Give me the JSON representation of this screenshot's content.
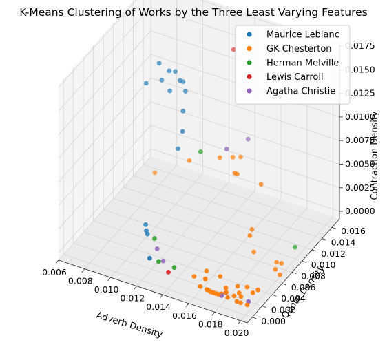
{
  "chart_data": {
    "type": "scatter",
    "title": "K-Means Clustering of Works by the Three Least Varying Features",
    "xlabel": "Adverb Density",
    "ylabel": "Quote Density",
    "zlabel": "Contraction Density",
    "xlim": [
      0.006,
      0.0205
    ],
    "ylim": [
      -0.001,
      0.0175
    ],
    "zlim": [
      -0.0008,
      0.0178
    ],
    "x_ticks": [
      "0.006",
      "0.008",
      "0.010",
      "0.012",
      "0.014",
      "0.016",
      "0.018",
      "0.020"
    ],
    "y_ticks": [
      "0.000",
      "0.002",
      "0.004",
      "0.006",
      "0.008",
      "0.010",
      "0.012",
      "0.014",
      "0.016"
    ],
    "z_ticks": [
      "0.0000",
      "0.0025",
      "0.0050",
      "0.0075",
      "0.0100",
      "0.0125",
      "0.0150",
      "0.0175"
    ],
    "legend_position": "top-right",
    "grid": true,
    "series": [
      {
        "name": "Maurice Leblanc",
        "color": "#1f77b4",
        "points": [
          [
            0.0081,
            0.0111,
            0.0117
          ],
          [
            0.0089,
            0.0116,
            0.0139
          ],
          [
            0.0091,
            0.0116,
            0.0122
          ],
          [
            0.0096,
            0.0118,
            0.0133
          ],
          [
            0.0098,
            0.0114,
            0.0115
          ],
          [
            0.0098,
            0.0125,
            0.0129
          ],
          [
            0.0102,
            0.0124,
            0.0122
          ],
          [
            0.0104,
            0.0125,
            0.0121
          ],
          [
            0.0107,
            0.0122,
            0.0114
          ],
          [
            0.0107,
            0.0117,
            0.0096
          ],
          [
            0.0112,
            0.0103,
            0.0085
          ],
          [
            0.0107,
            0.0107,
            0.0062
          ],
          [
            0.0099,
            0.0063,
            0.0004
          ],
          [
            0.0101,
            0.0059,
            0.0001
          ],
          [
            0.0103,
            0.0056,
            0.0
          ],
          [
            0.0117,
            0.0024,
            0.0
          ]
        ]
      },
      {
        "name": "GK Chesterton",
        "color": "#ff7f0e",
        "points": [
          [
            0.008,
            0.0131,
            0.001
          ],
          [
            0.0113,
            0.0114,
            0.0048
          ],
          [
            0.0138,
            0.011,
            0.0065
          ],
          [
            0.0148,
            0.011,
            0.007
          ],
          [
            0.0154,
            0.011,
            0.0073
          ],
          [
            0.0161,
            0.008,
            0.0077
          ],
          [
            0.0164,
            0.0077,
            0.0079
          ],
          [
            0.0175,
            0.0096,
            0.0062
          ],
          [
            0.0178,
            0.007,
            0.0031
          ],
          [
            0.0184,
            0.005,
            0.0039
          ],
          [
            0.0184,
            0.0058,
            0.0017
          ],
          [
            0.0172,
            0.0022,
            0.0007
          ],
          [
            0.0166,
            0.0008,
            0.001
          ],
          [
            0.0155,
            0.0014,
            0.0004
          ],
          [
            0.016,
            0.0026,
            0.0005
          ],
          [
            0.0181,
            0.001,
            0.0006
          ],
          [
            0.0182,
            0.0008,
            0.0003
          ],
          [
            0.0185,
            0.0023,
            0.0002
          ],
          [
            0.018,
            0.0004,
            0.0003
          ],
          [
            0.0176,
            0.0003,
            0.0002
          ],
          [
            0.0174,
            0.0003,
            0.0002
          ],
          [
            0.0172,
            0.0003,
            0.0002
          ],
          [
            0.0169,
            0.0003,
            0.0003
          ],
          [
            0.0164,
            0.0003,
            0.0004
          ],
          [
            0.017,
            0.0003,
            0.0003
          ],
          [
            0.0178,
            0.0003,
            0.0002
          ],
          [
            0.0185,
            0.0003,
            0.0002
          ],
          [
            0.0192,
            0.0003,
            0.0001
          ],
          [
            0.0195,
            0.0003,
            0.0001
          ],
          [
            0.02,
            0.0003,
            0.0001
          ],
          [
            0.0188,
            0.0008,
            0.0002
          ],
          [
            0.019,
            0.0013,
            0.0003
          ],
          [
            0.0199,
            0.0017,
            0.0005
          ],
          [
            0.0193,
            0.0021,
            0.0006
          ],
          [
            0.0201,
            0.0022,
            0.0006
          ],
          [
            0.0193,
            0.0009,
            0.0003
          ],
          [
            0.0199,
            0.0062,
            0.0003
          ],
          [
            0.0204,
            0.0058,
            0.0002
          ],
          [
            0.0195,
            0.0075,
            0.0001
          ],
          [
            0.02,
            0.0072,
            0.0004
          ]
        ]
      },
      {
        "name": "Herman Melville",
        "color": "#2ca02c",
        "points": [
          [
            0.011,
            0.0052,
            0.0001
          ],
          [
            0.0125,
            0.0021,
            0.0002
          ],
          [
            0.0137,
            0.0021,
            0.0001
          ],
          [
            0.0129,
            0.0095,
            0.0076
          ],
          [
            0.02,
            0.0099,
            0.0005
          ]
        ]
      },
      {
        "name": "Lewis Carroll",
        "color": "#d62728",
        "points": [
          [
            0.0136,
            0.0012,
            0.0001
          ],
          [
            0.0134,
            0.0148,
            0.0155
          ]
        ]
      },
      {
        "name": "Agatha Christie",
        "color": "#9467bd",
        "points": [
          [
            0.0117,
            0.0039,
            0.0001
          ],
          [
            0.0127,
            0.0025,
            0.0001
          ],
          [
            0.0181,
            0.001,
            0.0001
          ],
          [
            0.018,
            0.0004,
            0.0001
          ],
          [
            0.0199,
            0.0008,
            0.0001
          ],
          [
            0.0149,
            0.0095,
            0.0088
          ],
          [
            0.0157,
            0.0117,
            0.0089
          ],
          [
            0.0166,
            0.0158,
            0.0114
          ]
        ]
      }
    ]
  }
}
